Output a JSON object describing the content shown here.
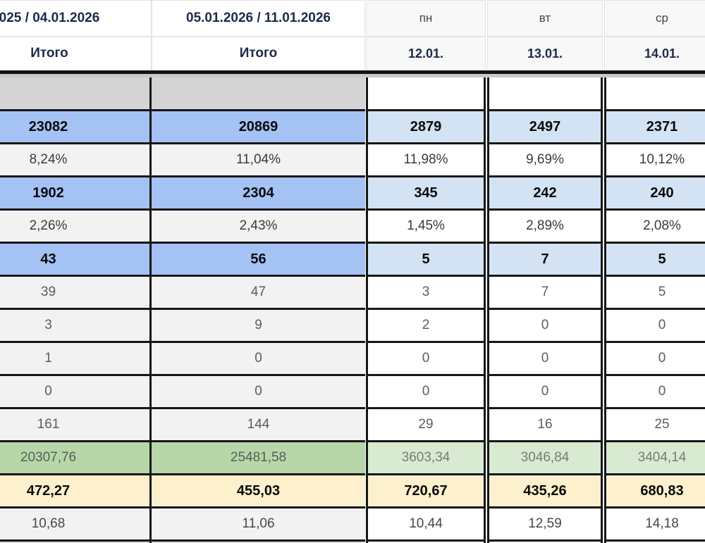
{
  "table": {
    "header_row1": [
      "025 / 04.01.2026",
      "05.01.2026 / 11.01.2026",
      "пн",
      "вт",
      "ср"
    ],
    "header_row2": [
      "Итого",
      "Итого",
      "12.01.",
      "13.01.",
      "14.01."
    ],
    "rows": [
      {
        "style": "empty",
        "cells": [
          "",
          "",
          "",
          "",
          ""
        ]
      },
      {
        "style": "blue",
        "cells": [
          "23082",
          "20869",
          "2879",
          "2497",
          "2371"
        ]
      },
      {
        "style": "pct",
        "cells": [
          "8,24%",
          "11,04%",
          "11,98%",
          "9,69%",
          "10,12%"
        ]
      },
      {
        "style": "blue",
        "cells": [
          "1902",
          "2304",
          "345",
          "242",
          "240"
        ]
      },
      {
        "style": "pct",
        "cells": [
          "2,26%",
          "2,43%",
          "1,45%",
          "2,89%",
          "2,08%"
        ]
      },
      {
        "style": "blue",
        "cells": [
          "43",
          "56",
          "5",
          "7",
          "5"
        ]
      },
      {
        "style": "plain",
        "cells": [
          "39",
          "47",
          "3",
          "7",
          "5"
        ]
      },
      {
        "style": "plain",
        "cells": [
          "3",
          "9",
          "2",
          "0",
          "0"
        ]
      },
      {
        "style": "plain",
        "cells": [
          "1",
          "0",
          "0",
          "0",
          "0"
        ]
      },
      {
        "style": "plain",
        "cells": [
          "0",
          "0",
          "0",
          "0",
          "0"
        ]
      },
      {
        "style": "plain",
        "cells": [
          "161",
          "144",
          "29",
          "16",
          "25"
        ]
      },
      {
        "style": "green",
        "cells": [
          "20307,76",
          "25481,58",
          "3603,34",
          "3046,84",
          "3404,14"
        ]
      },
      {
        "style": "yellow",
        "cells": [
          "472,27",
          "455,03",
          "720,67",
          "435,26",
          "680,83"
        ]
      },
      {
        "style": "plain last",
        "cells": [
          "10,68",
          "11,06",
          "10,44",
          "12,59",
          "14,18"
        ]
      },
      {
        "style": "sliver",
        "cells": [
          "",
          "",
          "",
          "",
          ""
        ]
      }
    ],
    "colors": {
      "header_text": "#1c2a4a",
      "strong_blue": "#a4c2f4",
      "light_blue": "#d3e3f4",
      "strong_green": "#b7d7a9",
      "light_green": "#d9ead3",
      "yellow": "#fcf0cd",
      "gray_cell": "#d4d4d4",
      "light_gray_cell": "#f2f2f2",
      "border_black": "#161616"
    }
  }
}
